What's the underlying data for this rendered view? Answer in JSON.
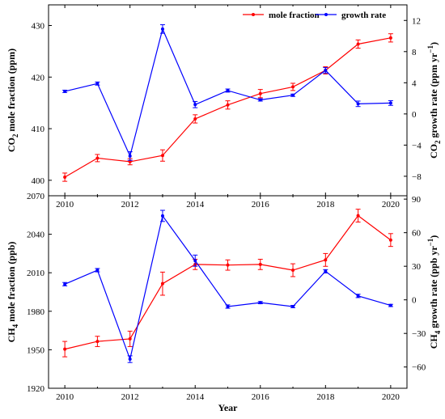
{
  "chart_data": [
    {
      "type": "line",
      "x": [
        2010,
        2011,
        2012,
        2013,
        2014,
        2015,
        2016,
        2017,
        2018,
        2019,
        2020
      ],
      "ylabel_left": {
        "base": "CO",
        "sub": "2",
        "rest": " mole fraction (ppm)"
      },
      "ylabel_right": {
        "base": "CO",
        "sub": "2",
        "mid": " growth rate (ppm yr",
        "sup": "−1",
        "end": ")"
      },
      "y_ticks_left": [
        "400",
        "410",
        "420",
        "430"
      ],
      "y_ticks_right": [
        "−8",
        "−4",
        "0",
        "4",
        "8",
        "12"
      ],
      "x_ticks": [
        "2010",
        "2012",
        "2014",
        "2016",
        "2018",
        "2020"
      ],
      "ylim_left": [
        397,
        434
      ],
      "ylim_right": [
        -10.5,
        14
      ],
      "legend": {
        "placement": "top-right",
        "entries": [
          "mole fraction",
          "growth rate"
        ]
      },
      "series": [
        {
          "name": "mole fraction",
          "axis": "left",
          "color": "#ff0000",
          "values": [
            400.6,
            404.3,
            403.6,
            404.8,
            411.9,
            414.6,
            416.8,
            418.1,
            421.3,
            426.4,
            427.6
          ],
          "errors": [
            0.8,
            0.7,
            0.6,
            1.1,
            0.8,
            0.8,
            0.8,
            0.7,
            0.7,
            0.8,
            0.8
          ]
        },
        {
          "name": "growth rate",
          "axis": "right",
          "color": "#0000ff",
          "values": [
            2.9,
            3.9,
            -5.4,
            10.9,
            1.2,
            3.0,
            1.8,
            2.4,
            5.6,
            1.3,
            1.4
          ],
          "errors": [
            0.15,
            0.2,
            0.55,
            0.55,
            0.4,
            0.2,
            0.15,
            0.15,
            0.35,
            0.35,
            0.3
          ]
        }
      ]
    },
    {
      "type": "line",
      "x": [
        2010,
        2011,
        2012,
        2013,
        2014,
        2015,
        2016,
        2017,
        2018,
        2019,
        2020
      ],
      "ylabel_left": {
        "base": "CH",
        "sub": "4",
        "rest": " mole fraction (ppb)"
      },
      "ylabel_right": {
        "base": "CH",
        "sub": "4",
        "mid": " growth rate (ppb yr",
        "sup": "−1",
        "end": ")"
      },
      "y_ticks_left": [
        "1920",
        "1950",
        "1980",
        "2010",
        "2040",
        "2070"
      ],
      "y_ticks_right": [
        "−60",
        "−30",
        "0",
        "30",
        "60",
        "90"
      ],
      "x_ticks": [
        "2010",
        "2012",
        "2014",
        "2016",
        "2018",
        "2020"
      ],
      "xlabel": "Year",
      "ylim_left": [
        1920,
        2070
      ],
      "ylim_right": [
        -79,
        93
      ],
      "series": [
        {
          "name": "mole fraction",
          "axis": "left",
          "color": "#ff0000",
          "values": [
            1950.5,
            1956.5,
            1958.5,
            2001.5,
            2016.5,
            2016.0,
            2016.5,
            2012.0,
            2020.0,
            2054.5,
            2035.5
          ],
          "errors": [
            6,
            4,
            6,
            9,
            4,
            4,
            4,
            5,
            5,
            5,
            5
          ]
        },
        {
          "name": "growth rate",
          "axis": "right",
          "color": "#0000ff",
          "values": [
            14,
            26.5,
            -53,
            75,
            35,
            -6,
            -2.5,
            -6,
            25.5,
            3.5,
            -5
          ],
          "errors": [
            1.5,
            1.5,
            3,
            5,
            5,
            1.5,
            1,
            1,
            1.5,
            1.5,
            1
          ]
        }
      ]
    }
  ]
}
